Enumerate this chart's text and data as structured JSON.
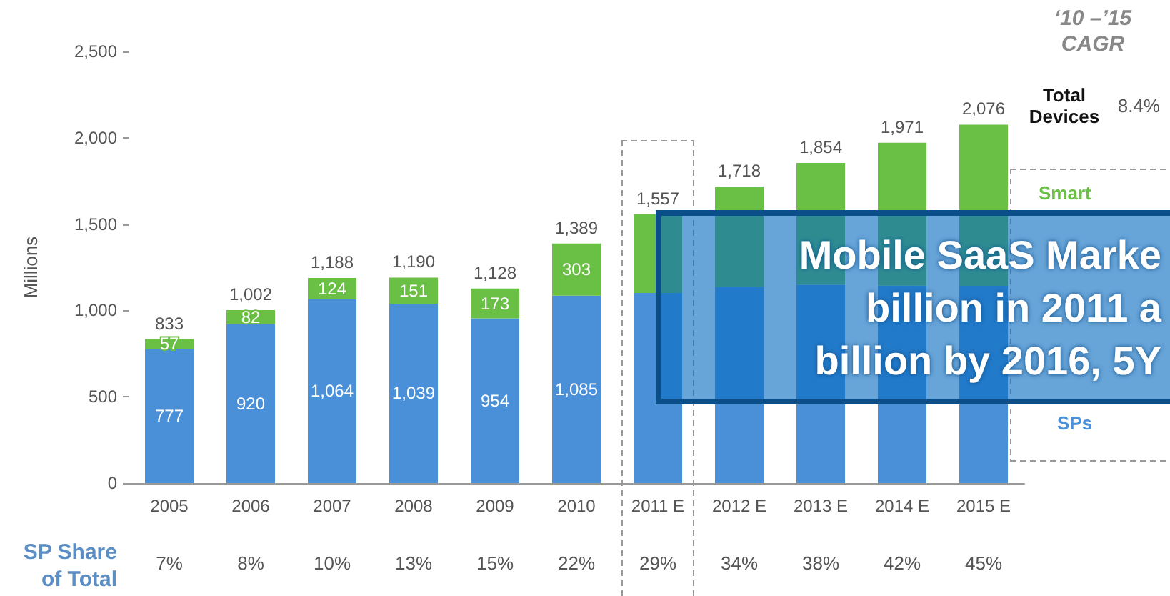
{
  "chart_data": {
    "type": "bar",
    "stacked": true,
    "ylabel": "Millions",
    "categories": [
      "2005",
      "2006",
      "2007",
      "2008",
      "2009",
      "2010",
      "2011 E",
      "2012 E",
      "2013 E",
      "2014 E",
      "2015 E"
    ],
    "series": [
      {
        "color": "#4a90d9",
        "values": [
          777,
          920,
          1064,
          1039,
          954,
          1085,
          1101,
          1134,
          1149,
          1143,
          1142
        ],
        "value_labels": [
          "777",
          "920",
          "1,064",
          "1,039",
          "954",
          "1,085",
          null,
          null,
          null,
          null,
          null
        ]
      },
      {
        "color": "#6abf45",
        "values": [
          57,
          82,
          124,
          151,
          173,
          303,
          456,
          584,
          705,
          828,
          934
        ],
        "value_labels": [
          "57",
          "82",
          "124",
          "151",
          "173",
          "303",
          null,
          null,
          null,
          null,
          null
        ]
      }
    ],
    "totals": [
      "833",
      "1,002",
      "1,188",
      "1,190",
      "1,128",
      "1,389",
      "1,557",
      "1,718",
      "1,854",
      "1,971",
      "2,076"
    ],
    "ylim": [
      0,
      2500
    ],
    "yticks": [
      {
        "value": 0,
        "label": "0"
      },
      {
        "value": 500,
        "label": "500"
      },
      {
        "value": 1000,
        "label": "1,000"
      },
      {
        "value": 1500,
        "label": "1,500"
      },
      {
        "value": 2000,
        "label": "2,000"
      },
      {
        "value": 2500,
        "label": "2,500"
      }
    ],
    "grid": false,
    "annotations": [
      "‘10 –’15\nCAGR",
      "Total\nDevices",
      "8.4%",
      "Smart",
      "SPs",
      "SP Share\nof Total",
      "7%",
      "8%",
      "10%",
      "13%",
      "15%",
      "22%",
      "29%",
      "34%",
      "38%",
      "42%",
      "45%",
      "Mobile SaaS Marke\nbillion in 2011 a\nbillion by 2016, 5Y"
    ]
  }
}
